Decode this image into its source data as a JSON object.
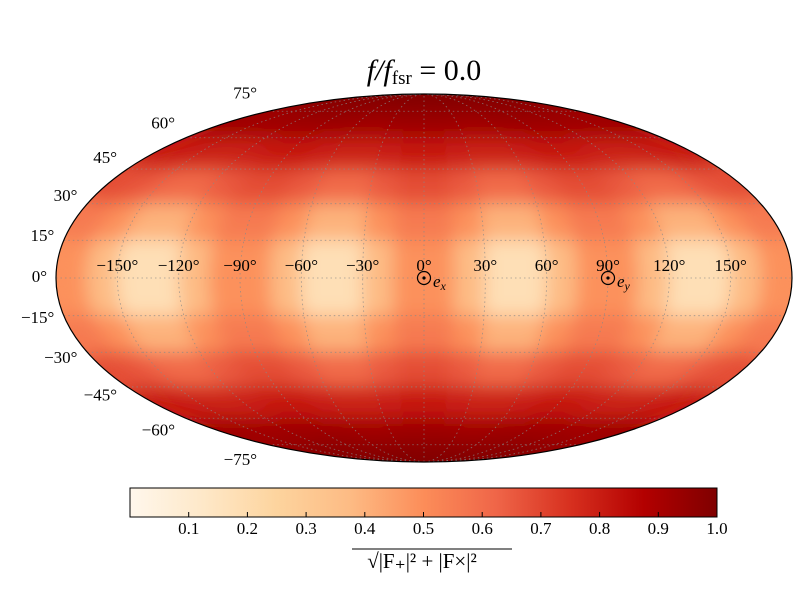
{
  "chart_data": {
    "type": "heatmap",
    "projection": "mollweide",
    "title": {
      "main": "f/f",
      "sub": "fsr",
      "rest": " = 0.0"
    },
    "x": [
      -172.5,
      -157.5,
      -142.5,
      -127.5,
      -112.5,
      -97.5,
      -82.5,
      -67.5,
      -52.5,
      -37.5,
      -22.5,
      -7.5,
      7.5,
      22.5,
      37.5,
      52.5,
      67.5,
      82.5,
      97.5,
      112.5,
      127.5,
      142.5,
      157.5,
      172.5
    ],
    "y": [
      82.5,
      67.5,
      52.5,
      37.5,
      22.5,
      7.5,
      -7.5,
      -22.5,
      -37.5,
      -52.5,
      -67.5,
      -82.5
    ],
    "z": [
      [
        0.99,
        0.99,
        0.99,
        0.99,
        0.99,
        0.99,
        0.99,
        0.99,
        0.99,
        0.99,
        0.99,
        0.99,
        0.99,
        0.99,
        0.99,
        0.99,
        0.99,
        0.99,
        0.99,
        0.99,
        0.99,
        0.99,
        0.99,
        0.99
      ],
      [
        0.93,
        0.93,
        0.92,
        0.92,
        0.93,
        0.93,
        0.93,
        0.93,
        0.92,
        0.92,
        0.93,
        0.93,
        0.93,
        0.93,
        0.92,
        0.92,
        0.93,
        0.93,
        0.93,
        0.93,
        0.92,
        0.92,
        0.93,
        0.93
      ],
      [
        0.81,
        0.8,
        0.79,
        0.79,
        0.8,
        0.81,
        0.81,
        0.8,
        0.79,
        0.79,
        0.8,
        0.81,
        0.81,
        0.8,
        0.79,
        0.79,
        0.8,
        0.81,
        0.81,
        0.8,
        0.79,
        0.79,
        0.8,
        0.81
      ],
      [
        0.68,
        0.65,
        0.61,
        0.61,
        0.65,
        0.68,
        0.68,
        0.65,
        0.61,
        0.61,
        0.65,
        0.68,
        0.68,
        0.65,
        0.61,
        0.61,
        0.65,
        0.68,
        0.68,
        0.65,
        0.61,
        0.61,
        0.65,
        0.68
      ],
      [
        0.56,
        0.49,
        0.4,
        0.4,
        0.49,
        0.56,
        0.56,
        0.49,
        0.4,
        0.4,
        0.49,
        0.56,
        0.56,
        0.49,
        0.4,
        0.4,
        0.49,
        0.56,
        0.56,
        0.49,
        0.4,
        0.4,
        0.49,
        0.56
      ],
      [
        0.49,
        0.37,
        0.18,
        0.18,
        0.37,
        0.49,
        0.49,
        0.37,
        0.18,
        0.18,
        0.37,
        0.49,
        0.49,
        0.37,
        0.18,
        0.18,
        0.37,
        0.49,
        0.49,
        0.37,
        0.18,
        0.18,
        0.37,
        0.49
      ],
      [
        0.49,
        0.37,
        0.18,
        0.18,
        0.37,
        0.49,
        0.49,
        0.37,
        0.18,
        0.18,
        0.37,
        0.49,
        0.49,
        0.37,
        0.18,
        0.18,
        0.37,
        0.49,
        0.49,
        0.37,
        0.18,
        0.18,
        0.37,
        0.49
      ],
      [
        0.56,
        0.49,
        0.4,
        0.4,
        0.49,
        0.56,
        0.56,
        0.49,
        0.4,
        0.4,
        0.49,
        0.56,
        0.56,
        0.49,
        0.4,
        0.4,
        0.49,
        0.56,
        0.56,
        0.49,
        0.4,
        0.4,
        0.49,
        0.56
      ],
      [
        0.68,
        0.65,
        0.61,
        0.61,
        0.65,
        0.68,
        0.68,
        0.65,
        0.61,
        0.61,
        0.65,
        0.68,
        0.68,
        0.65,
        0.61,
        0.61,
        0.65,
        0.68,
        0.68,
        0.65,
        0.61,
        0.61,
        0.65,
        0.68
      ],
      [
        0.81,
        0.8,
        0.79,
        0.79,
        0.8,
        0.81,
        0.81,
        0.8,
        0.79,
        0.79,
        0.8,
        0.81,
        0.81,
        0.8,
        0.79,
        0.79,
        0.8,
        0.81,
        0.81,
        0.8,
        0.79,
        0.79,
        0.8,
        0.81
      ],
      [
        0.93,
        0.93,
        0.92,
        0.92,
        0.93,
        0.93,
        0.93,
        0.93,
        0.92,
        0.92,
        0.93,
        0.93,
        0.93,
        0.93,
        0.92,
        0.92,
        0.93,
        0.93,
        0.93,
        0.93,
        0.92,
        0.92,
        0.93,
        0.93
      ],
      [
        0.99,
        0.99,
        0.99,
        0.99,
        0.99,
        0.99,
        0.99,
        0.99,
        0.99,
        0.99,
        0.99,
        0.99,
        0.99,
        0.99,
        0.99,
        0.99,
        0.99,
        0.99,
        0.99,
        0.99,
        0.99,
        0.99,
        0.99,
        0.99
      ]
    ],
    "xlim": [
      -180,
      180
    ],
    "ylim": [
      -90,
      90
    ],
    "xticks": [
      {
        "value": -150,
        "label": "−150°"
      },
      {
        "value": -120,
        "label": "−120°"
      },
      {
        "value": -90,
        "label": "−90°"
      },
      {
        "value": -60,
        "label": "−60°"
      },
      {
        "value": -30,
        "label": "−30°"
      },
      {
        "value": 0,
        "label": "0°"
      },
      {
        "value": 30,
        "label": "30°"
      },
      {
        "value": 60,
        "label": "60°"
      },
      {
        "value": 90,
        "label": "90°"
      },
      {
        "value": 120,
        "label": "120°"
      },
      {
        "value": 150,
        "label": "150°"
      }
    ],
    "yticks": [
      {
        "value": 75,
        "label": "75°"
      },
      {
        "value": 60,
        "label": "60°"
      },
      {
        "value": 45,
        "label": "45°"
      },
      {
        "value": 30,
        "label": "30°"
      },
      {
        "value": 15,
        "label": "15°"
      },
      {
        "value": 0,
        "label": "0°"
      },
      {
        "value": -15,
        "label": "−15°"
      },
      {
        "value": -30,
        "label": "−30°"
      },
      {
        "value": -45,
        "label": "−45°"
      },
      {
        "value": -60,
        "label": "−60°"
      },
      {
        "value": -75,
        "label": "−75°"
      }
    ],
    "grid": true,
    "colormap": "OrRd",
    "markers": [
      {
        "lon": 0,
        "lat": 0,
        "label": "e",
        "sub": "x"
      },
      {
        "lon": 90,
        "lat": 0,
        "label": "e",
        "sub": "y"
      }
    ],
    "colorbar": {
      "clim": [
        0,
        1
      ],
      "ticks": [
        0.1,
        0.2,
        0.3,
        0.4,
        0.5,
        0.6,
        0.7,
        0.8,
        0.9,
        {
          "value": 1,
          "label": "1.0"
        }
      ],
      "label": "√|F₊|² + |F×|²"
    }
  }
}
